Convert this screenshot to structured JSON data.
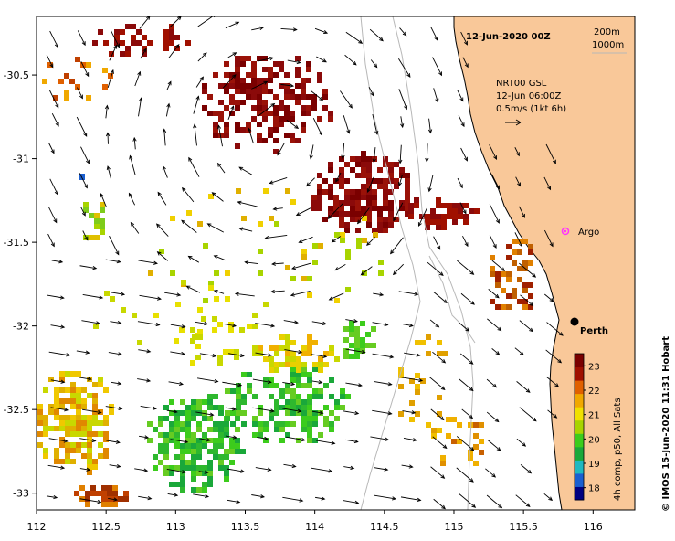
{
  "map": {
    "lon_range": [
      112,
      116.3
    ],
    "lat_range": [
      -33.1,
      -30.15
    ],
    "x_ticks": [
      "112",
      "112.5",
      "113",
      "113.5",
      "114",
      "114.5",
      "115",
      "115.5",
      "116"
    ],
    "y_ticks": [
      "-30.5",
      "-31",
      "-31.5",
      "-32",
      "-32.5",
      "-33"
    ],
    "title": "12-Jun-2020 00Z",
    "depth_labels": [
      "200m",
      "1000m"
    ],
    "current_info": [
      "NRT00 GSL",
      "12-Jun 06:00Z",
      "0.5m/s (1kt 6h)"
    ],
    "argo_label": "Argo",
    "city_label": "Perth",
    "credit": "© IMOS 15-Jun-2020 11:31 Hobart",
    "colors": {
      "land": "#f9c899",
      "ocean": "#ffffff",
      "isobath": "#b8b8b8",
      "argo": "#ff33ff"
    }
  },
  "colorbar": {
    "label": "4h comp, p50, All Sats",
    "ticks": [
      "18",
      "19",
      "20",
      "21",
      "22",
      "23"
    ],
    "range": [
      17.5,
      23.5
    ],
    "colors": [
      "#000080",
      "#1a5fd0",
      "#1fb8c0",
      "#1aa83a",
      "#3ccc1c",
      "#a8d400",
      "#f0e000",
      "#f0a800",
      "#e06000",
      "#a01000",
      "#7a0000"
    ]
  }
}
